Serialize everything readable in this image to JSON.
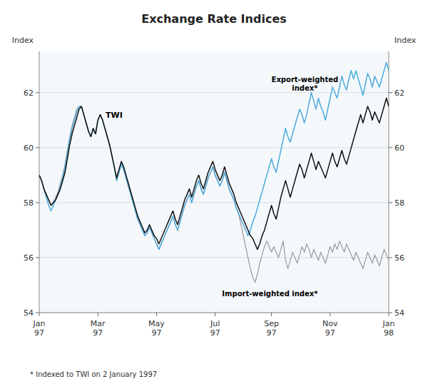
{
  "chart_data": {
    "type": "line",
    "title": "Exchange Rate Indices",
    "y_label": "Index",
    "y2_label": "Index",
    "annotations": [
      "*  Indexed to TWI on 2 January 1997"
    ],
    "ylim": [
      54,
      63.5
    ],
    "yticks": [
      54,
      56,
      58,
      60,
      62
    ],
    "y2lim": [
      54,
      63.5
    ],
    "y2ticks": [
      54,
      56,
      58,
      60,
      62
    ],
    "grid": true,
    "categories": [
      "Jan\n97",
      null,
      null,
      null,
      null,
      null,
      null,
      null,
      null,
      null,
      null,
      null,
      null,
      null,
      null,
      null,
      null,
      null,
      null,
      null,
      null,
      null,
      null,
      null,
      null,
      "Mar\n97",
      null,
      null,
      null,
      null,
      null,
      null,
      null,
      null,
      null,
      null,
      null,
      null,
      null,
      null,
      null,
      null,
      null,
      null,
      null,
      null,
      null,
      null,
      null,
      null,
      "May\n97",
      null,
      null,
      null,
      null,
      null,
      null,
      null,
      null,
      null,
      null,
      null,
      null,
      null,
      null,
      null,
      null,
      null,
      null,
      null,
      null,
      null,
      null,
      null,
      null,
      "Jul\n97",
      null,
      null,
      null,
      null,
      null,
      null,
      null,
      null,
      null,
      null,
      null,
      null,
      null,
      null,
      null,
      null,
      null,
      null,
      null,
      null,
      null,
      null,
      null,
      "Sep\n97",
      null,
      null,
      null,
      null,
      null,
      null,
      null,
      null,
      null,
      null,
      null,
      null,
      null,
      null,
      null,
      null,
      null,
      null,
      null,
      null,
      null,
      null,
      null,
      null,
      "Nov\n97",
      null,
      null,
      null,
      null,
      null,
      null,
      null,
      null,
      null,
      null,
      null,
      null,
      null,
      null,
      null,
      null,
      null,
      null,
      null,
      null,
      null,
      null,
      null,
      null,
      "Jan\n98"
    ],
    "series": [
      {
        "name": "Import-weighted index*",
        "color": "#999999",
        "values": [
          59.0,
          58.8,
          58.5,
          58.3,
          58.1,
          57.9,
          58.0,
          58.2,
          58.4,
          58.7,
          59.0,
          59.4,
          59.9,
          60.4,
          60.8,
          61.1,
          61.4,
          61.5,
          61.5,
          61.2,
          60.9,
          60.6,
          60.4,
          60.7,
          60.5,
          61.0,
          61.2,
          61.0,
          60.7,
          60.4,
          60.1,
          59.7,
          59.3,
          58.8,
          59.1,
          59.4,
          59.2,
          58.9,
          58.6,
          58.3,
          58.0,
          57.7,
          57.4,
          57.2,
          57.0,
          56.8,
          56.9,
          57.1,
          56.9,
          56.7,
          56.5,
          56.3,
          56.5,
          56.7,
          56.9,
          57.1,
          57.3,
          57.5,
          57.2,
          57.0,
          57.3,
          57.6,
          57.9,
          58.1,
          58.3,
          58.0,
          58.3,
          58.6,
          58.8,
          58.5,
          58.3,
          58.6,
          58.9,
          59.1,
          59.3,
          59.0,
          58.8,
          58.6,
          58.8,
          59.1,
          58.8,
          58.5,
          58.3,
          58.1,
          57.8,
          57.6,
          57.2,
          56.8,
          56.4,
          56.0,
          55.6,
          55.3,
          55.1,
          55.4,
          55.8,
          56.1,
          56.4,
          56.6,
          56.4,
          56.2,
          56.4,
          56.2,
          56.0,
          56.3,
          56.6,
          55.9,
          55.6,
          55.9,
          56.2,
          56.0,
          55.8,
          56.1,
          56.4,
          56.2,
          56.5,
          56.3,
          56.0,
          56.3,
          56.1,
          55.9,
          56.2,
          56.0,
          55.8,
          56.1,
          56.4,
          56.2,
          56.5,
          56.3,
          56.6,
          56.4,
          56.2,
          56.5,
          56.3,
          56.1,
          55.9,
          56.2,
          56.0,
          55.8,
          55.6,
          55.9,
          56.2,
          56.0,
          55.8,
          56.1,
          55.9,
          55.7,
          56.0,
          56.3,
          56.1,
          55.9
        ]
      },
      {
        "name": "Export-weighted\nindex*",
        "color": "#4daadd",
        "values": [
          59.0,
          58.8,
          58.5,
          58.2,
          57.9,
          57.7,
          57.9,
          58.1,
          58.3,
          58.6,
          58.9,
          59.3,
          59.8,
          60.3,
          60.7,
          61.0,
          61.3,
          61.5,
          61.5,
          61.2,
          60.9,
          60.6,
          60.4,
          60.7,
          60.5,
          61.0,
          61.2,
          61.0,
          60.7,
          60.4,
          60.1,
          59.7,
          59.3,
          58.8,
          59.1,
          59.4,
          59.2,
          58.9,
          58.6,
          58.3,
          58.0,
          57.7,
          57.4,
          57.2,
          57.0,
          56.8,
          56.9,
          57.1,
          56.9,
          56.7,
          56.5,
          56.3,
          56.5,
          56.7,
          56.9,
          57.1,
          57.3,
          57.5,
          57.2,
          57.0,
          57.3,
          57.6,
          57.9,
          58.1,
          58.3,
          58.0,
          58.3,
          58.6,
          58.8,
          58.5,
          58.3,
          58.6,
          58.9,
          59.1,
          59.3,
          59.0,
          58.8,
          58.6,
          58.8,
          59.1,
          58.8,
          58.5,
          58.3,
          58.1,
          57.8,
          57.6,
          57.4,
          57.2,
          57.0,
          56.8,
          57.0,
          57.3,
          57.5,
          57.8,
          58.1,
          58.4,
          58.7,
          59.0,
          59.3,
          59.6,
          59.3,
          59.1,
          59.5,
          59.9,
          60.3,
          60.7,
          60.4,
          60.2,
          60.5,
          60.8,
          61.1,
          61.4,
          61.2,
          60.9,
          61.2,
          61.6,
          62.0,
          61.7,
          61.4,
          61.8,
          61.5,
          61.3,
          61.0,
          61.4,
          61.8,
          62.2,
          62.0,
          61.8,
          62.2,
          62.6,
          62.3,
          62.1,
          62.5,
          62.8,
          62.5,
          62.8,
          62.5,
          62.2,
          61.9,
          62.3,
          62.7,
          62.5,
          62.2,
          62.6,
          62.4,
          62.2,
          62.5,
          62.8,
          63.1,
          62.8
        ]
      },
      {
        "name": "TWI",
        "color": "#111111",
        "values": [
          59.0,
          58.8,
          58.5,
          58.3,
          58.1,
          57.9,
          58.0,
          58.1,
          58.3,
          58.5,
          58.8,
          59.1,
          59.6,
          60.1,
          60.5,
          60.8,
          61.1,
          61.4,
          61.5,
          61.2,
          60.9,
          60.6,
          60.4,
          60.7,
          60.5,
          61.0,
          61.2,
          61.0,
          60.7,
          60.4,
          60.1,
          59.7,
          59.3,
          58.9,
          59.2,
          59.5,
          59.3,
          59.0,
          58.7,
          58.4,
          58.1,
          57.8,
          57.5,
          57.3,
          57.1,
          56.9,
          57.0,
          57.2,
          57.0,
          56.8,
          56.7,
          56.5,
          56.7,
          56.9,
          57.1,
          57.3,
          57.5,
          57.7,
          57.4,
          57.2,
          57.5,
          57.8,
          58.1,
          58.3,
          58.5,
          58.2,
          58.5,
          58.8,
          59.0,
          58.7,
          58.5,
          58.8,
          59.1,
          59.3,
          59.5,
          59.2,
          59.0,
          58.8,
          59.0,
          59.3,
          59.0,
          58.7,
          58.5,
          58.3,
          58.0,
          57.8,
          57.6,
          57.4,
          57.2,
          57.0,
          56.8,
          56.7,
          56.5,
          56.3,
          56.5,
          56.8,
          57.0,
          57.3,
          57.6,
          57.9,
          57.6,
          57.4,
          57.8,
          58.2,
          58.5,
          58.8,
          58.5,
          58.2,
          58.5,
          58.8,
          59.1,
          59.4,
          59.2,
          58.9,
          59.2,
          59.5,
          59.8,
          59.5,
          59.2,
          59.5,
          59.3,
          59.1,
          58.9,
          59.2,
          59.5,
          59.8,
          59.5,
          59.3,
          59.6,
          59.9,
          59.6,
          59.4,
          59.7,
          60.0,
          60.3,
          60.6,
          60.9,
          61.2,
          60.9,
          61.2,
          61.5,
          61.3,
          61.0,
          61.3,
          61.1,
          60.9,
          61.2,
          61.5,
          61.8,
          61.5
        ]
      }
    ]
  }
}
